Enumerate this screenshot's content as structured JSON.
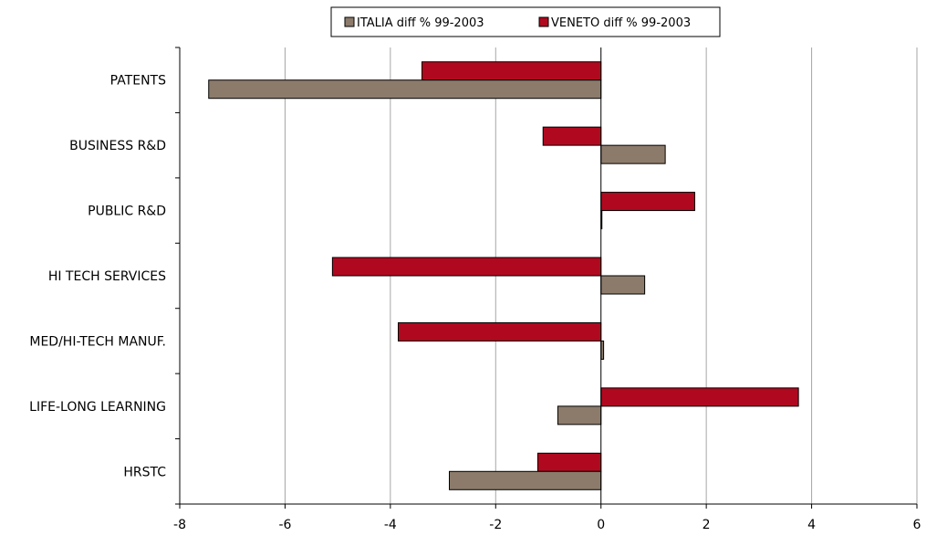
{
  "chart_data": {
    "type": "bar",
    "orientation": "horizontal",
    "categories": [
      "PATENTS",
      "BUSINESS R&D",
      "PUBLIC R&D",
      "HI TECH SERVICES",
      "MED/HI-TECH MANUF.",
      "LIFE-LONG LEARNING",
      "HRSTC"
    ],
    "series": [
      {
        "name": "ITALIA diff % 99-2003",
        "values": [
          -7.45,
          1.22,
          0.01,
          0.83,
          0.05,
          -0.82,
          -2.88
        ]
      },
      {
        "name": "VENETO diff % 99-2003",
        "values": [
          -3.4,
          -1.1,
          1.78,
          -5.1,
          -3.85,
          3.75,
          -1.2
        ]
      }
    ],
    "xlim": [
      -8,
      6
    ],
    "xticks": [
      -8,
      -6,
      -4,
      -2,
      0,
      2,
      4,
      6
    ],
    "xtick_labels": [
      "-8",
      "-6",
      "-4",
      "-2",
      "0",
      "2",
      "4",
      "6"
    ],
    "grid": "vertical",
    "legend_position": "top",
    "title": "",
    "xlabel": "",
    "ylabel": "",
    "colors": {
      "ITALIA": "#8c7b6b",
      "VENETO": "#b0091f",
      "grid": "#a6a6a6",
      "axis": "#000000"
    }
  }
}
